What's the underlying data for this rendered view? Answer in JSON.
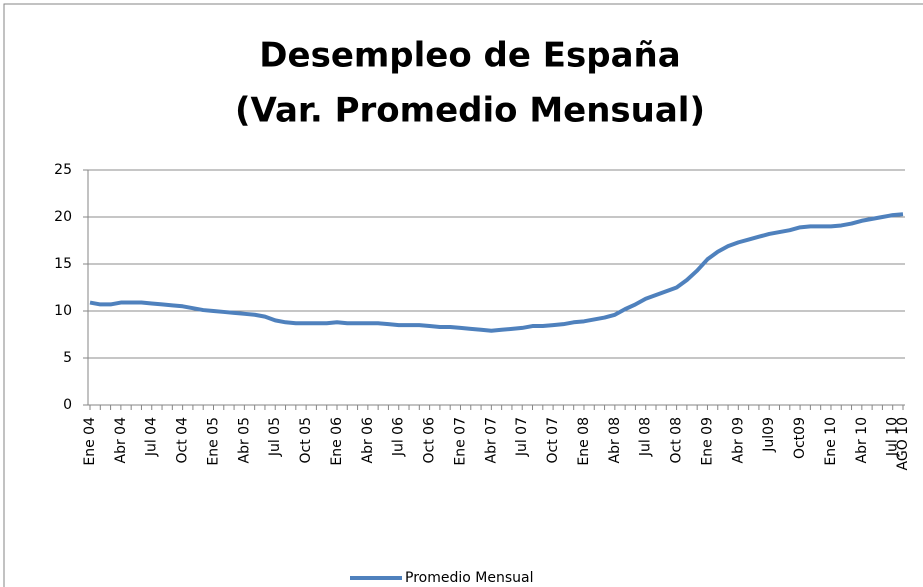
{
  "chart_data": {
    "type": "line",
    "title": [
      "Desempleo de España",
      "(Var. Promedio Mensual)"
    ],
    "categories": [
      "Ene 04",
      null,
      null,
      "Abr 04",
      null,
      null,
      "Jul 04",
      null,
      null,
      "Oct 04",
      null,
      null,
      "Ene 05",
      null,
      null,
      "Abr 05",
      null,
      null,
      "Jul 05",
      null,
      null,
      "Oct 05",
      null,
      null,
      "Ene 06",
      null,
      null,
      "Abr 06",
      null,
      null,
      "Jul 06",
      null,
      null,
      "Oct 06",
      null,
      null,
      "Ene 07",
      null,
      null,
      "Abr 07",
      null,
      null,
      "Jul 07",
      null,
      null,
      "Oct 07",
      null,
      null,
      "Ene 08",
      null,
      null,
      "Abr 08",
      null,
      null,
      "Jul 08",
      null,
      null,
      "Oct 08",
      null,
      null,
      "Ene 09",
      null,
      null,
      "Abr 09",
      null,
      null,
      "Jul09",
      null,
      null,
      "Oct09",
      null,
      null,
      "Ene 10",
      null,
      null,
      "Abr 10",
      null,
      null,
      "Jul 10",
      "AGO 10"
    ],
    "series": [
      {
        "name": "Promedio Mensual",
        "color": "#4f81bd",
        "values": [
          10.9,
          10.7,
          10.7,
          10.9,
          10.9,
          10.9,
          10.8,
          10.7,
          10.6,
          10.5,
          10.3,
          10.1,
          10.0,
          9.9,
          9.8,
          9.7,
          9.6,
          9.4,
          9.0,
          8.8,
          8.7,
          8.7,
          8.7,
          8.7,
          8.8,
          8.7,
          8.7,
          8.7,
          8.7,
          8.6,
          8.5,
          8.5,
          8.5,
          8.4,
          8.3,
          8.3,
          8.2,
          8.1,
          8.0,
          7.9,
          8.0,
          8.1,
          8.2,
          8.4,
          8.4,
          8.5,
          8.6,
          8.8,
          8.9,
          9.1,
          9.3,
          9.6,
          10.2,
          10.7,
          11.3,
          11.7,
          12.1,
          12.5,
          13.3,
          14.3,
          15.5,
          16.3,
          16.9,
          17.3,
          17.6,
          17.9,
          18.2,
          18.4,
          18.6,
          18.9,
          19.0,
          19.0,
          19.0,
          19.1,
          19.3,
          19.6,
          19.8,
          20.0,
          20.2,
          20.3
        ]
      }
    ],
    "ylim": [
      0,
      25
    ],
    "yticks": [
      0,
      5,
      10,
      15,
      20,
      25
    ],
    "grid": true,
    "legend": "bottom"
  }
}
